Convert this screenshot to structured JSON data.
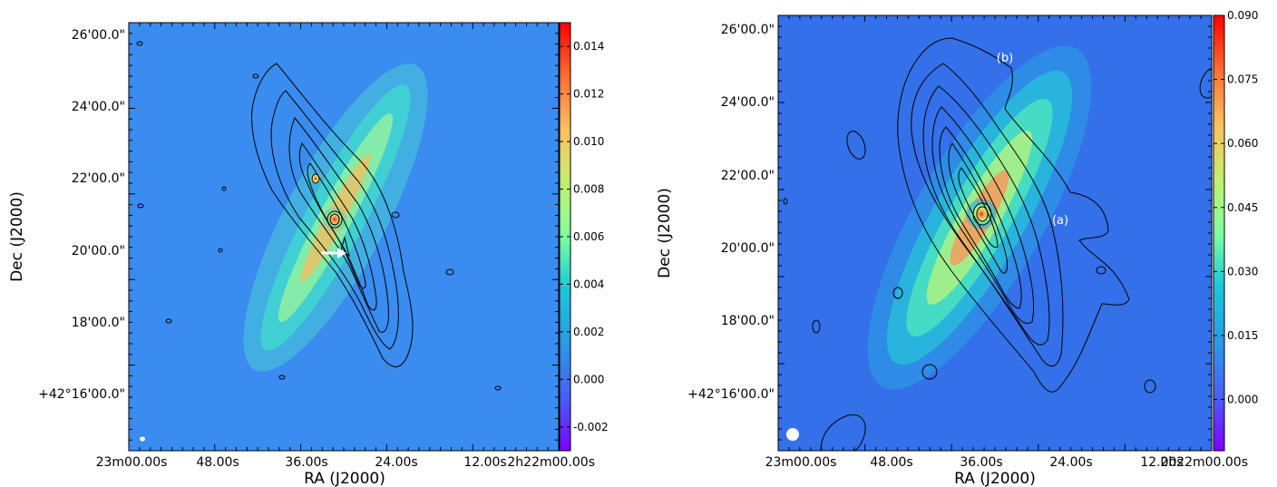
{
  "chart_data": [
    {
      "type": "heatmap",
      "panel": "left",
      "xlabel": "RA (J2000)",
      "ylabel": "Dec (J2000)",
      "xticks": [
        "23m00.00s",
        "48.00s",
        "36.00s",
        "24.00s",
        "12.00s",
        "2h22m00.00s"
      ],
      "yticks": [
        "26'00.0\"",
        "24'00.0\"",
        "22'00.0\"",
        "20'00.0\"",
        "18'00.0\"",
        "+42°16'00.0\""
      ],
      "colorbar": {
        "ticks": [
          "-0.002",
          "0.000",
          "0.002",
          "0.004",
          "0.006",
          "0.008",
          "0.010",
          "0.012",
          "0.014"
        ],
        "range": [
          -0.003,
          0.015
        ],
        "colormap": "rainbow"
      },
      "contours": true,
      "annotations": [
        {
          "kind": "arrow",
          "color": "#ffffff"
        }
      ],
      "beam": "small-white-ellipse"
    },
    {
      "type": "heatmap",
      "panel": "right",
      "xlabel": "RA (J2000)",
      "ylabel": "Dec (J2000)",
      "xticks": [
        "23m00.00s",
        "48.00s",
        "36.00s",
        "24.00s",
        "12.00s",
        "2h22m00.00s"
      ],
      "yticks": [
        "26'00.0\"",
        "24'00.0\"",
        "22'00.0\"",
        "20'00.0\"",
        "18'00.0\"",
        "+42°16'00.0\""
      ],
      "colorbar": {
        "ticks": [
          "0.000",
          "0.015",
          "0.030",
          "0.045",
          "0.060",
          "0.075",
          "0.090"
        ],
        "range": [
          -0.012,
          0.09
        ],
        "colormap": "rainbow"
      },
      "contours": true,
      "annotations": [
        {
          "kind": "text",
          "text": "(b)"
        },
        {
          "kind": "text",
          "text": "(a)"
        }
      ],
      "beam": "white-circle"
    }
  ],
  "colors": {
    "background_blue": "#3a8cf0",
    "contour": "#000000",
    "annotation": "#ffffff"
  }
}
